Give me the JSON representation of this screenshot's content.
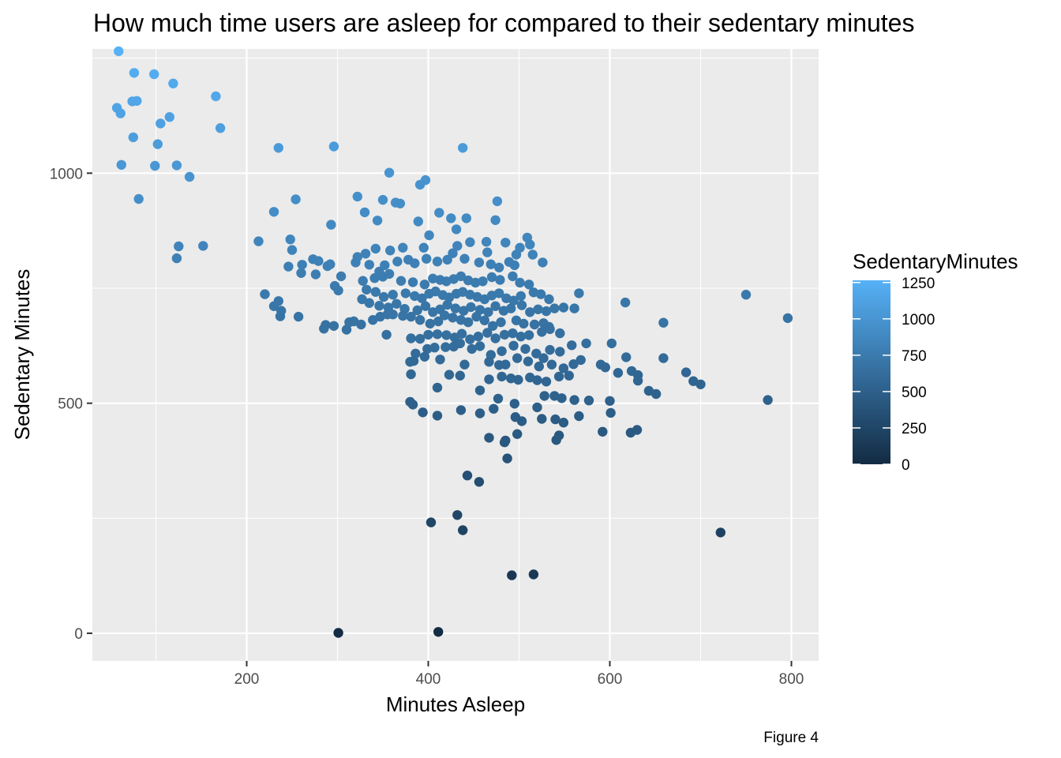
{
  "chart_data": {
    "type": "scatter",
    "title": "How much time users are asleep for compared to their sedentary minutes",
    "xlabel": "Minutes Asleep",
    "ylabel": "Sedentary Minutes",
    "caption": "Figure 4",
    "xlim": [
      30,
      830
    ],
    "ylim": [
      -60,
      1270
    ],
    "x_ticks": [
      200,
      400,
      600,
      800
    ],
    "y_ticks": [
      0,
      500,
      1000
    ],
    "x_tick_labels": [
      "200",
      "400",
      "600",
      "800"
    ],
    "y_tick_labels": [
      "0",
      "500",
      "1000"
    ],
    "grid": true,
    "color_scale": {
      "name": "SedentaryMinutes",
      "variable": "y",
      "low_color": "#132b43",
      "high_color": "#56b1f7",
      "limits": [
        0,
        1265
      ],
      "breaks": [
        0,
        250,
        500,
        750,
        1000,
        1250
      ],
      "break_labels": [
        "0",
        "250",
        "500",
        "750",
        "1000",
        "1250"
      ],
      "legend_position": "right"
    },
    "points": [
      [
        59,
        1265
      ],
      [
        57,
        1142
      ],
      [
        61,
        1130
      ],
      [
        76,
        1218
      ],
      [
        74,
        1156
      ],
      [
        79,
        1157
      ],
      [
        98,
        1215
      ],
      [
        119,
        1195
      ],
      [
        166,
        1167
      ],
      [
        115,
        1122
      ],
      [
        105,
        1108
      ],
      [
        171,
        1098
      ],
      [
        75,
        1078
      ],
      [
        102,
        1063
      ],
      [
        62,
        1018
      ],
      [
        99,
        1016
      ],
      [
        123,
        1017
      ],
      [
        137,
        992
      ],
      [
        81,
        944
      ],
      [
        125,
        841
      ],
      [
        123,
        815
      ],
      [
        152,
        842
      ],
      [
        296,
        1058
      ],
      [
        235,
        1055
      ],
      [
        438,
        1055
      ],
      [
        357,
        1001
      ],
      [
        397,
        985
      ],
      [
        391,
        975
      ],
      [
        322,
        949
      ],
      [
        350,
        942
      ],
      [
        254,
        943
      ],
      [
        364,
        936
      ],
      [
        369,
        934
      ],
      [
        476,
        939
      ],
      [
        230,
        916
      ],
      [
        330,
        915
      ],
      [
        412,
        914
      ],
      [
        425,
        902
      ],
      [
        442,
        902
      ],
      [
        474,
        898
      ],
      [
        344,
        897
      ],
      [
        389,
        895
      ],
      [
        293,
        888
      ],
      [
        431,
        878
      ],
      [
        401,
        865
      ],
      [
        464,
        851
      ],
      [
        509,
        860
      ],
      [
        213,
        852
      ],
      [
        248,
        856
      ],
      [
        250,
        833
      ],
      [
        322,
        818
      ],
      [
        331,
        825
      ],
      [
        342,
        836
      ],
      [
        358,
        832
      ],
      [
        372,
        838
      ],
      [
        395,
        838
      ],
      [
        432,
        842
      ],
      [
        446,
        850
      ],
      [
        485,
        849
      ],
      [
        427,
        826
      ],
      [
        465,
        828
      ],
      [
        497,
        823
      ],
      [
        501,
        838
      ],
      [
        512,
        845
      ],
      [
        515,
        823
      ],
      [
        526,
        806
      ],
      [
        273,
        813
      ],
      [
        279,
        809
      ],
      [
        246,
        797
      ],
      [
        261,
        801
      ],
      [
        276,
        780
      ],
      [
        260,
        783
      ],
      [
        289,
        798
      ],
      [
        292,
        802
      ],
      [
        320,
        806
      ],
      [
        335,
        801
      ],
      [
        346,
        786
      ],
      [
        352,
        800
      ],
      [
        366,
        808
      ],
      [
        378,
        812
      ],
      [
        385,
        804
      ],
      [
        398,
        814
      ],
      [
        410,
        808
      ],
      [
        421,
        812
      ],
      [
        440,
        814
      ],
      [
        456,
        806
      ],
      [
        469,
        802
      ],
      [
        478,
        795
      ],
      [
        489,
        807
      ],
      [
        495,
        800
      ],
      [
        341,
        772
      ],
      [
        350,
        775
      ],
      [
        357,
        781
      ],
      [
        370,
        766
      ],
      [
        383,
        763
      ],
      [
        396,
        758
      ],
      [
        405,
        771
      ],
      [
        413,
        768
      ],
      [
        420,
        765
      ],
      [
        428,
        770
      ],
      [
        436,
        776
      ],
      [
        444,
        767
      ],
      [
        452,
        762
      ],
      [
        460,
        765
      ],
      [
        470,
        774
      ],
      [
        479,
        768
      ],
      [
        493,
        776
      ],
      [
        501,
        762
      ],
      [
        511,
        758
      ],
      [
        220,
        737
      ],
      [
        230,
        711
      ],
      [
        235,
        722
      ],
      [
        238,
        701
      ],
      [
        257,
        688
      ],
      [
        237,
        689
      ],
      [
        297,
        755
      ],
      [
        301,
        745
      ],
      [
        304,
        776
      ],
      [
        328,
        766
      ],
      [
        332,
        747
      ],
      [
        342,
        742
      ],
      [
        351,
        731
      ],
      [
        361,
        736
      ],
      [
        375,
        739
      ],
      [
        385,
        733
      ],
      [
        393,
        728
      ],
      [
        401,
        738
      ],
      [
        408,
        743
      ],
      [
        416,
        735
      ],
      [
        423,
        730
      ],
      [
        431,
        738
      ],
      [
        438,
        742
      ],
      [
        446,
        736
      ],
      [
        454,
        731
      ],
      [
        462,
        726
      ],
      [
        470,
        734
      ],
      [
        478,
        739
      ],
      [
        486,
        728
      ],
      [
        494,
        723
      ],
      [
        502,
        733
      ],
      [
        516,
        741
      ],
      [
        524,
        737
      ],
      [
        533,
        726
      ],
      [
        549,
        708
      ],
      [
        561,
        706
      ],
      [
        566,
        739
      ],
      [
        327,
        726
      ],
      [
        335,
        718
      ],
      [
        346,
        712
      ],
      [
        356,
        708
      ],
      [
        365,
        716
      ],
      [
        374,
        705
      ],
      [
        388,
        702
      ],
      [
        397,
        711
      ],
      [
        405,
        698
      ],
      [
        413,
        704
      ],
      [
        421,
        714
      ],
      [
        430,
        706
      ],
      [
        439,
        701
      ],
      [
        447,
        709
      ],
      [
        457,
        703
      ],
      [
        466,
        698
      ],
      [
        474,
        711
      ],
      [
        483,
        701
      ],
      [
        491,
        706
      ],
      [
        503,
        713
      ],
      [
        512,
        698
      ],
      [
        521,
        704
      ],
      [
        530,
        700
      ],
      [
        539,
        706
      ],
      [
        285,
        662
      ],
      [
        287,
        670
      ],
      [
        296,
        668
      ],
      [
        310,
        660
      ],
      [
        313,
        676
      ],
      [
        318,
        678
      ],
      [
        326,
        671
      ],
      [
        339,
        681
      ],
      [
        347,
        688
      ],
      [
        355,
        693
      ],
      [
        361,
        693
      ],
      [
        372,
        690
      ],
      [
        381,
        688
      ],
      [
        391,
        681
      ],
      [
        402,
        673
      ],
      [
        411,
        678
      ],
      [
        418,
        691
      ],
      [
        427,
        686
      ],
      [
        436,
        681
      ],
      [
        444,
        676
      ],
      [
        453,
        688
      ],
      [
        462,
        680
      ],
      [
        471,
        668
      ],
      [
        480,
        676
      ],
      [
        497,
        680
      ],
      [
        505,
        673
      ],
      [
        517,
        671
      ],
      [
        527,
        674
      ],
      [
        533,
        666
      ],
      [
        354,
        649
      ],
      [
        381,
        641
      ],
      [
        391,
        640
      ],
      [
        400,
        649
      ],
      [
        410,
        650
      ],
      [
        420,
        648
      ],
      [
        429,
        643
      ],
      [
        437,
        651
      ],
      [
        446,
        639
      ],
      [
        455,
        645
      ],
      [
        465,
        653
      ],
      [
        474,
        641
      ],
      [
        484,
        649
      ],
      [
        493,
        652
      ],
      [
        502,
        645
      ],
      [
        511,
        648
      ],
      [
        525,
        655
      ],
      [
        534,
        661
      ],
      [
        545,
        652
      ],
      [
        386,
        608
      ],
      [
        399,
        618
      ],
      [
        407,
        621
      ],
      [
        419,
        622
      ],
      [
        428,
        623
      ],
      [
        435,
        630
      ],
      [
        448,
        618
      ],
      [
        457,
        624
      ],
      [
        469,
        605
      ],
      [
        481,
        613
      ],
      [
        494,
        625
      ],
      [
        507,
        618
      ],
      [
        519,
        608
      ],
      [
        527,
        598
      ],
      [
        534,
        616
      ],
      [
        545,
        612
      ],
      [
        558,
        626
      ],
      [
        574,
        630
      ],
      [
        602,
        630
      ],
      [
        618,
        600
      ],
      [
        659,
        598
      ],
      [
        380,
        590
      ],
      [
        384,
        592
      ],
      [
        396,
        601
      ],
      [
        413,
        595
      ],
      [
        440,
        584
      ],
      [
        467,
        590
      ],
      [
        478,
        583
      ],
      [
        485,
        584
      ],
      [
        498,
        598
      ],
      [
        510,
        591
      ],
      [
        522,
        580
      ],
      [
        536,
        584
      ],
      [
        549,
        576
      ],
      [
        560,
        585
      ],
      [
        568,
        594
      ],
      [
        590,
        584
      ],
      [
        595,
        578
      ],
      [
        624,
        570
      ],
      [
        631,
        561
      ],
      [
        684,
        567
      ],
      [
        692,
        548
      ],
      [
        700,
        541
      ],
      [
        381,
        563
      ],
      [
        423,
        562
      ],
      [
        435,
        560
      ],
      [
        467,
        552
      ],
      [
        481,
        558
      ],
      [
        491,
        554
      ],
      [
        499,
        551
      ],
      [
        512,
        556
      ],
      [
        520,
        550
      ],
      [
        530,
        547
      ],
      [
        544,
        558
      ],
      [
        555,
        560
      ],
      [
        609,
        566
      ],
      [
        631,
        549
      ],
      [
        643,
        527
      ],
      [
        651,
        520
      ],
      [
        383,
        497
      ],
      [
        410,
        534
      ],
      [
        457,
        528
      ],
      [
        477,
        510
      ],
      [
        495,
        499
      ],
      [
        528,
        516
      ],
      [
        539,
        516
      ],
      [
        547,
        511
      ],
      [
        561,
        507
      ],
      [
        577,
        506
      ],
      [
        600,
        505
      ],
      [
        380,
        503
      ],
      [
        394,
        480
      ],
      [
        410,
        473
      ],
      [
        436,
        485
      ],
      [
        457,
        478
      ],
      [
        472,
        488
      ],
      [
        496,
        470
      ],
      [
        503,
        461
      ],
      [
        520,
        491
      ],
      [
        525,
        466
      ],
      [
        540,
        465
      ],
      [
        549,
        458
      ],
      [
        566,
        472
      ],
      [
        601,
        479
      ],
      [
        623,
        436
      ],
      [
        630,
        442
      ],
      [
        592,
        438
      ],
      [
        498,
        433
      ],
      [
        485,
        419
      ],
      [
        467,
        425
      ],
      [
        484,
        415
      ],
      [
        541,
        420
      ],
      [
        544,
        430
      ],
      [
        487,
        380
      ],
      [
        443,
        343
      ],
      [
        456,
        329
      ],
      [
        432,
        257
      ],
      [
        403,
        241
      ],
      [
        438,
        224
      ],
      [
        774,
        507
      ],
      [
        796,
        685
      ],
      [
        750,
        736
      ],
      [
        617,
        719
      ],
      [
        659,
        675
      ],
      [
        722,
        219
      ],
      [
        492,
        126
      ],
      [
        516,
        128
      ],
      [
        301,
        1
      ],
      [
        411,
        3
      ]
    ]
  }
}
